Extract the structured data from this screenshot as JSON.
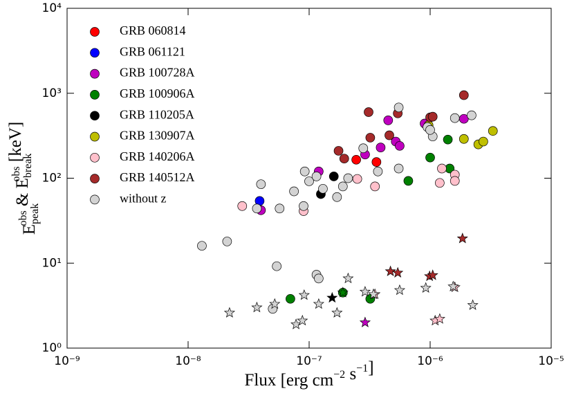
{
  "chart_data": {
    "type": "scatter",
    "xlabel": [
      "Flux [erg cm",
      {
        "sup": "−2"
      },
      " s",
      {
        "sup": "−1"
      },
      "]"
    ],
    "ylabel": [
      "E",
      {
        "sup": "obs",
        "sub": "peak"
      },
      " & E",
      {
        "sup": "obs",
        "sub": "break"
      },
      " [keV]"
    ],
    "xscale": "log",
    "yscale": "log",
    "legend": "upper left",
    "xlim": [
      1e-09,
      1e-05
    ],
    "ylim": [
      1,
      10000
    ],
    "xticks": [
      {
        "value": 1e-09,
        "label": "10⁻⁹"
      },
      {
        "value": 1e-08,
        "label": "10⁻⁸"
      },
      {
        "value": 1e-07,
        "label": "10⁻⁷"
      },
      {
        "value": 1e-06,
        "label": "10⁻⁶"
      },
      {
        "value": 1e-05,
        "label": "10⁻⁵"
      }
    ],
    "yticks": [
      {
        "value": 1,
        "label": "10⁰"
      },
      {
        "value": 10,
        "label": "10¹"
      },
      {
        "value": 100,
        "label": "10²"
      },
      {
        "value": 1000,
        "label": "10³"
      },
      {
        "value": 10000,
        "label": "10⁴"
      }
    ],
    "series": [
      {
        "name": "GRB 060814",
        "color": "#ff0000",
        "x": [
          2.45e-07,
          3.6e-07
        ],
        "values": [
          165,
          155
        ],
        "markers": [
          "o",
          "o"
        ]
      },
      {
        "name": "GRB 061121",
        "color": "#0000ff",
        "x": [
          3.9e-08
        ],
        "values": [
          54
        ],
        "markers": [
          "o"
        ]
      },
      {
        "name": "GRB 100728A",
        "color": "#bf00bf",
        "x": [
          4e-08,
          1.2e-07,
          2.9e-07,
          3.9e-07,
          4.5e-07,
          5.2e-07,
          5.6e-07,
          9e-07,
          1.9e-06,
          2.9e-07
        ],
        "values": [
          42,
          120,
          190,
          230,
          480,
          270,
          240,
          440,
          500,
          2.0
        ],
        "markers": [
          "o",
          "o",
          "o",
          "o",
          "o",
          "o",
          "o",
          "o",
          "o",
          "*"
        ]
      },
      {
        "name": "GRB 100906A",
        "color": "#008000",
        "x": [
          1e-06,
          6.6e-07,
          1.4e-06,
          1.45e-06,
          7e-08,
          1.9e-07,
          3.2e-07,
          1.9e-07
        ],
        "values": [
          175,
          93,
          285,
          130,
          3.8,
          4.5,
          3.8,
          4.5
        ],
        "markers": [
          "o",
          "o",
          "o",
          "o",
          "o",
          "o",
          "o",
          "*"
        ]
      },
      {
        "name": "GRB 110205A",
        "color": "#000000",
        "x": [
          1.25e-07,
          1.6e-07,
          1.55e-07
        ],
        "values": [
          65,
          105,
          3.9
        ],
        "markers": [
          "o",
          "o",
          "*"
        ]
      },
      {
        "name": "GRB 130907A",
        "color": "#bfbf00",
        "x": [
          9.7e-07,
          1.9e-06,
          2.5e-06,
          2.75e-06,
          3.3e-06
        ],
        "values": [
          420,
          290,
          250,
          270,
          360
        ],
        "markers": [
          "o",
          "o",
          "o",
          "o",
          "o"
        ]
      },
      {
        "name": "GRB 140206A",
        "color": "#ffc0cb",
        "x": [
          2.8e-08,
          9e-08,
          2.5e-07,
          3.5e-07,
          1.2e-06,
          1.25e-06,
          1.6e-06,
          1.6e-06,
          3.5e-07,
          1.1e-06,
          1.2e-06,
          1.6e-06
        ],
        "values": [
          47,
          41,
          98,
          80,
          88,
          130,
          110,
          93,
          4.3,
          2.1,
          2.2,
          5.2
        ],
        "markers": [
          "o",
          "o",
          "o",
          "o",
          "o",
          "o",
          "o",
          "o",
          "*",
          "*",
          "*",
          "*"
        ]
      },
      {
        "name": "GRB 140512A",
        "color": "#a52a2a",
        "x": [
          1.75e-07,
          1.95e-07,
          3.1e-07,
          3.2e-07,
          4.6e-07,
          5.4e-07,
          1e-06,
          1.05e-06,
          1.9e-06,
          4.7e-07,
          5.4e-07,
          9.9e-07,
          1.05e-06,
          1.85e-06
        ],
        "values": [
          210,
          170,
          600,
          300,
          320,
          580,
          520,
          530,
          950,
          8,
          7.7,
          7,
          7.2,
          19.5
        ],
        "markers": [
          "o",
          "o",
          "o",
          "o",
          "o",
          "o",
          "o",
          "o",
          "o",
          "*",
          "*",
          "*",
          "*",
          "*"
        ]
      },
      {
        "name": "without z",
        "color": "#d3d3d3",
        "x": [
          1.3e-08,
          2.1e-08,
          3.7e-08,
          4e-08,
          5.7e-08,
          7.5e-08,
          9e-08,
          9.2e-08,
          1e-07,
          1.15e-07,
          1.3e-07,
          1.7e-07,
          1.9e-07,
          2.1e-07,
          2.8e-07,
          3.7e-07,
          5.5e-07,
          5.5e-07,
          9.5e-07,
          1.05e-06,
          1e-06,
          1.6e-06,
          2.2e-06,
          5.4e-08,
          5e-08,
          1.15e-07,
          1.2e-07,
          2.2e-08,
          3.7e-08,
          5.2e-08,
          7.8e-08,
          8.8e-08,
          9.1e-08,
          1.2e-07,
          1.7e-07,
          2.1e-07,
          2.9e-07,
          3.4e-07,
          5.6e-07,
          9.2e-07,
          1.55e-06,
          2.25e-06
        ],
        "values": [
          16,
          18,
          44,
          85,
          44,
          70,
          47,
          120,
          92,
          105,
          75,
          60,
          80,
          100,
          225,
          120,
          130,
          680,
          400,
          310,
          370,
          510,
          550,
          9.2,
          2.9,
          7.3,
          6.6,
          2.6,
          3.0,
          3.3,
          1.9,
          2.1,
          4.2,
          3.3,
          2.6,
          6.6,
          4.6,
          4.3,
          4.8,
          5.1,
          5.3,
          3.2
        ],
        "markers": [
          "o",
          "o",
          "o",
          "o",
          "o",
          "o",
          "o",
          "o",
          "o",
          "o",
          "o",
          "o",
          "o",
          "o",
          "o",
          "o",
          "o",
          "o",
          "o",
          "o",
          "o",
          "o",
          "o",
          "o",
          "o",
          "o",
          "o",
          "*",
          "*",
          "*",
          "*",
          "*",
          "*",
          "*",
          "*",
          "*",
          "*",
          "*",
          "*",
          "*",
          "*",
          "*"
        ]
      }
    ]
  }
}
